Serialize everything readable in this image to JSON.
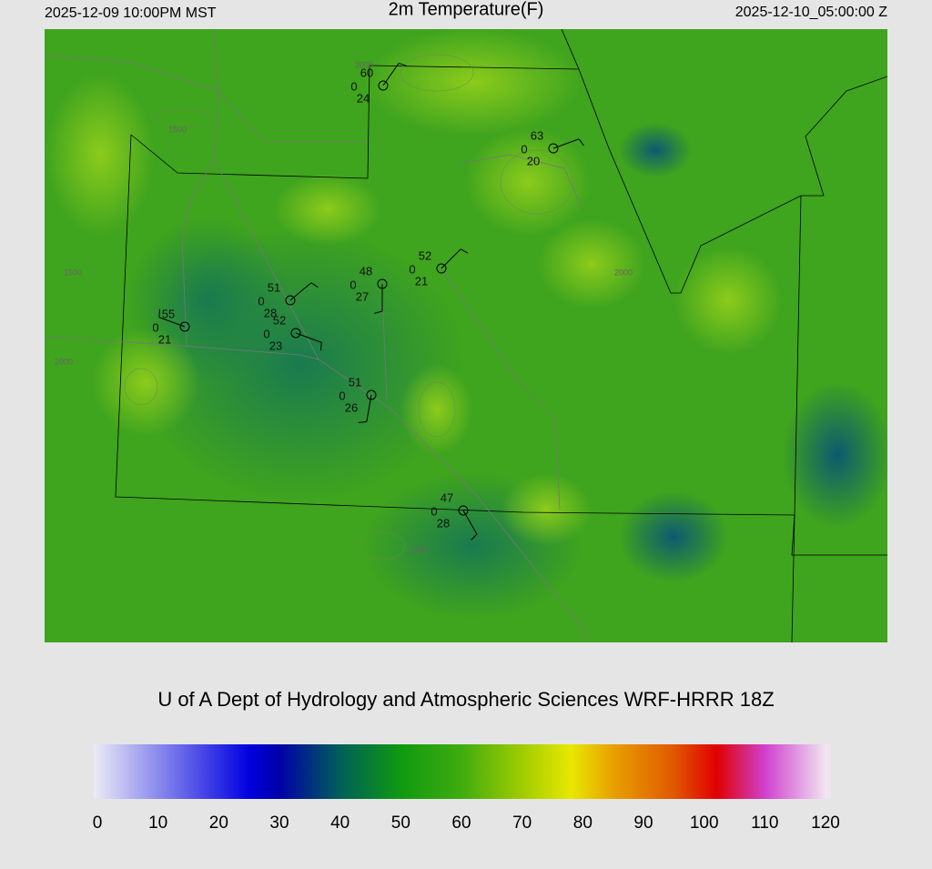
{
  "header": {
    "left": "2025-12-09 10:00PM MST",
    "title": "2m Temperature(F)",
    "right": "2025-12-10_05:00:00 Z"
  },
  "footer": "U of A Dept of Hydrology and Atmospheric Sciences WRF-HRRR 18Z",
  "stations": [
    {
      "temp": "60",
      "pressure": "0",
      "dewpoint": "24"
    },
    {
      "temp": "63",
      "pressure": "0",
      "dewpoint": "20"
    },
    {
      "temp": "52",
      "pressure": "0",
      "dewpoint": "21"
    },
    {
      "temp": "48",
      "pressure": "0",
      "dewpoint": "27"
    },
    {
      "temp": "51",
      "pressure": "0",
      "dewpoint": "28"
    },
    {
      "temp": "52",
      "pressure": "0",
      "dewpoint": "23"
    },
    {
      "temp": "55",
      "pressure": "0",
      "dewpoint": "21"
    },
    {
      "temp": "51",
      "pressure": "0",
      "dewpoint": "26"
    },
    {
      "temp": "47",
      "pressure": "0",
      "dewpoint": "28"
    }
  ],
  "contour_labels": [
    "1500",
    "2000",
    "1500",
    "2000",
    "2500",
    "2000"
  ],
  "colorbar": {
    "clim": [
      0,
      120
    ],
    "ticks": [
      0,
      10,
      20,
      30,
      40,
      50,
      60,
      70,
      80,
      90,
      100,
      110,
      120
    ],
    "stops": [
      {
        "value": 0,
        "color": "#ecebf5"
      },
      {
        "value": 25,
        "color": "#0000e0"
      },
      {
        "value": 30,
        "color": "#0000a8"
      },
      {
        "value": 40,
        "color": "#006058"
      },
      {
        "value": 50,
        "color": "#109a10"
      },
      {
        "value": 60,
        "color": "#40ac10"
      },
      {
        "value": 70,
        "color": "#a0cc00"
      },
      {
        "value": 78,
        "color": "#e8e800"
      },
      {
        "value": 85,
        "color": "#e8a000"
      },
      {
        "value": 95,
        "color": "#e05800"
      },
      {
        "value": 102,
        "color": "#e00000"
      },
      {
        "value": 110,
        "color": "#d040d0"
      },
      {
        "value": 120,
        "color": "#f0e4f0"
      }
    ]
  }
}
